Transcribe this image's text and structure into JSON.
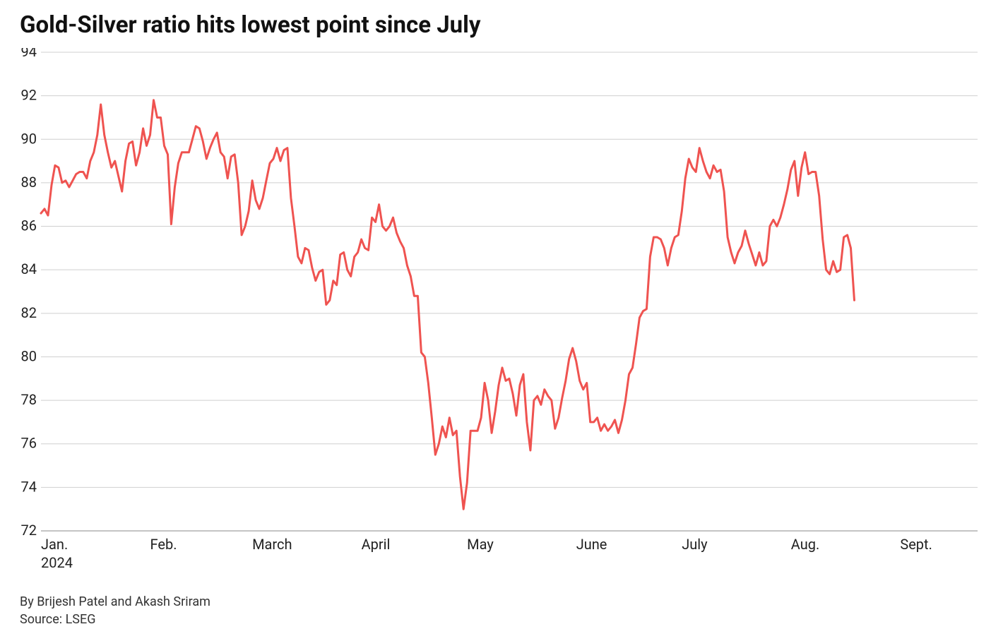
{
  "title": "Gold-Silver ratio hits lowest point since July",
  "title_fontsize": 33,
  "title_color": "#111111",
  "byline": "By Brijesh Patel and Akash Sriram",
  "source": "Source: LSEG",
  "footer_fontsize": 18,
  "footer_color": "#333333",
  "chart": {
    "type": "line",
    "background_color": "#ffffff",
    "grid_color": "#cfcfcf",
    "baseline_color": "#888888",
    "axis_label_color": "#222222",
    "axis_label_fontsize": 20,
    "ylim": [
      72,
      94
    ],
    "yticks": [
      72,
      74,
      76,
      78,
      80,
      82,
      84,
      86,
      88,
      90,
      92,
      94
    ],
    "x_start_month_label": "Jan.",
    "x_year_label": "2024",
    "x_month_labels": [
      "Feb.",
      "March",
      "April",
      "May",
      "June",
      "July",
      "Aug.",
      "Sept."
    ],
    "x_month_positions": [
      31,
      60,
      91,
      121,
      152,
      182,
      213,
      244
    ],
    "x_domain": [
      0,
      266
    ],
    "line_color": "#ef5350",
    "line_width": 3,
    "values": [
      86.6,
      86.8,
      86.5,
      87.9,
      88.8,
      88.7,
      88.0,
      88.1,
      87.8,
      88.1,
      88.4,
      88.5,
      88.5,
      88.2,
      89.0,
      89.4,
      90.2,
      91.6,
      90.2,
      89.4,
      88.7,
      89.0,
      88.3,
      87.6,
      89.0,
      89.8,
      89.9,
      88.8,
      89.4,
      90.5,
      89.7,
      90.2,
      91.8,
      91.0,
      91.0,
      89.7,
      89.3,
      86.1,
      87.8,
      88.9,
      89.4,
      89.4,
      89.4,
      90.0,
      90.6,
      90.5,
      89.9,
      89.1,
      89.6,
      90.0,
      90.3,
      89.4,
      89.2,
      88.2,
      89.2,
      89.3,
      88.0,
      85.6,
      86.0,
      86.7,
      88.1,
      87.2,
      86.8,
      87.3,
      88.1,
      88.9,
      89.1,
      89.6,
      89.0,
      89.5,
      89.6,
      87.3,
      86.0,
      84.6,
      84.3,
      85.0,
      84.9,
      84.1,
      83.5,
      83.9,
      84.0,
      82.4,
      82.6,
      83.5,
      83.3,
      84.7,
      84.8,
      84.0,
      83.7,
      84.6,
      84.8,
      85.4,
      85.0,
      84.9,
      86.4,
      86.2,
      87.0,
      86.0,
      85.8,
      86.0,
      86.4,
      85.7,
      85.3,
      85.0,
      84.2,
      83.7,
      82.8,
      82.8,
      80.2,
      80.0,
      78.8,
      77.2,
      75.5,
      76.0,
      76.8,
      76.3,
      77.2,
      76.4,
      76.6,
      74.5,
      73.0,
      74.2,
      76.6,
      76.6,
      76.6,
      77.2,
      78.8,
      78.0,
      76.5,
      77.5,
      78.7,
      79.5,
      78.9,
      79.0,
      78.3,
      77.3,
      78.7,
      79.2,
      77.0,
      75.7,
      78.0,
      78.2,
      77.8,
      78.5,
      78.2,
      78.0,
      76.7,
      77.2,
      78.1,
      78.9,
      79.9,
      80.4,
      79.8,
      78.9,
      78.5,
      78.8,
      77.0,
      77.0,
      77.2,
      76.6,
      76.9,
      76.6,
      76.8,
      77.1,
      76.5,
      77.1,
      78.0,
      79.2,
      79.5,
      80.6,
      81.8,
      82.1,
      82.2,
      84.6,
      85.5,
      85.5,
      85.4,
      85.0,
      84.2,
      85.0,
      85.5,
      85.6,
      86.7,
      88.2,
      89.1,
      88.7,
      88.5,
      89.6,
      89.0,
      88.5,
      88.2,
      88.8,
      88.5,
      88.6,
      87.6,
      85.5,
      84.8,
      84.3,
      84.8,
      85.1,
      85.8,
      85.2,
      84.7,
      84.2,
      84.8,
      84.2,
      84.4,
      86.0,
      86.3,
      86.0,
      86.4,
      87.0,
      87.7,
      88.6,
      89.0,
      87.4,
      88.7,
      89.4,
      88.4,
      88.5,
      88.5,
      87.4,
      85.4,
      84.0,
      83.8,
      84.4,
      83.9,
      84.0,
      85.5,
      85.6,
      85.0,
      82.6
    ]
  }
}
